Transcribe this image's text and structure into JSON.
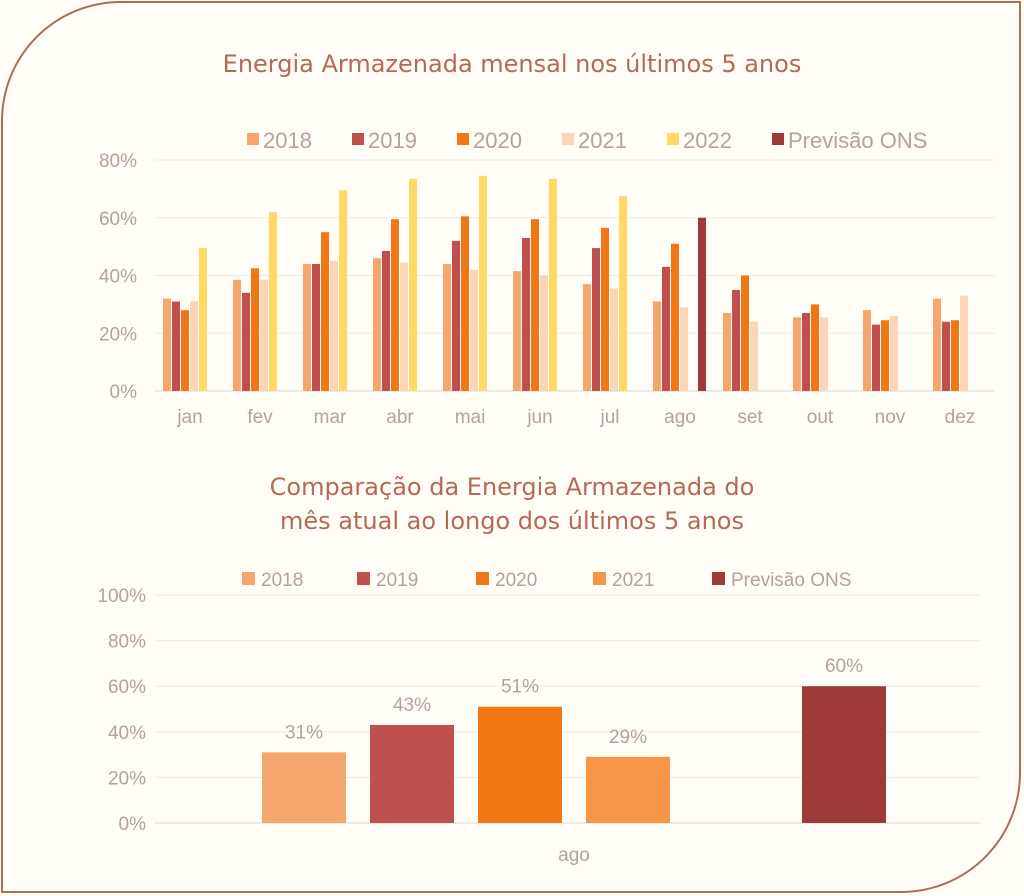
{
  "charts_meta": {
    "title1": "Energia Armazenada mensal nos últimos 5 anos",
    "title2_line1": "Comparação da Energia Armazenada do",
    "title2_line2": "mês atual ao longo dos últimos 5 anos"
  },
  "chart_data": [
    {
      "type": "bar",
      "title": "Energia Armazenada mensal nos últimos 5 anos",
      "categories": [
        "jan",
        "fev",
        "mar",
        "abr",
        "mai",
        "jun",
        "jul",
        "ago",
        "set",
        "out",
        "nov",
        "dez"
      ],
      "ylim": [
        0,
        80
      ],
      "yticks": [
        "0%",
        "20%",
        "40%",
        "60%",
        "80%"
      ],
      "grid": true,
      "legend_position": "top",
      "series": [
        {
          "name": "2018",
          "color": "#f5a66c",
          "values": [
            32,
            38.5,
            44,
            46,
            44,
            41.5,
            37,
            31,
            27,
            25.5,
            28,
            32
          ]
        },
        {
          "name": "2019",
          "color": "#c0504d",
          "values": [
            31,
            34,
            44,
            48.5,
            52,
            53,
            49.5,
            43,
            35,
            27,
            23,
            24
          ]
        },
        {
          "name": "2020",
          "color": "#f07714",
          "values": [
            28,
            42.5,
            55,
            59.5,
            60.5,
            59.5,
            56.5,
            51,
            40,
            30,
            24.5,
            24.5
          ]
        },
        {
          "name": "2021",
          "color": "#fbd5b5",
          "values": [
            31,
            38.5,
            45,
            44.5,
            42,
            40,
            35.5,
            29,
            24,
            25.5,
            26,
            33
          ]
        },
        {
          "name": "2022",
          "color": "#ffd966",
          "values": [
            49.5,
            62,
            69.5,
            73.5,
            74.5,
            73.5,
            67.5,
            null,
            null,
            null,
            null,
            null
          ]
        },
        {
          "name": "Previsão ONS",
          "color": "#9e3a38",
          "values": [
            null,
            null,
            null,
            null,
            null,
            null,
            null,
            60,
            null,
            null,
            null,
            null
          ]
        }
      ]
    },
    {
      "type": "bar",
      "title": "Comparação da Energia Armazenada do mês atual ao longo dos últimos 5 anos",
      "categories": [
        "ago"
      ],
      "ylim": [
        0,
        100
      ],
      "yticks": [
        "0%",
        "20%",
        "40%",
        "60%",
        "80%",
        "100%"
      ],
      "grid": true,
      "legend_position": "top",
      "series": [
        {
          "name": "2018",
          "color": "#f5a66c",
          "value": 31,
          "label": "31%"
        },
        {
          "name": "2019",
          "color": "#c0504d",
          "value": 43,
          "label": "43%"
        },
        {
          "name": "2020",
          "color": "#f07714",
          "value": 51,
          "label": "51%"
        },
        {
          "name": "2021",
          "color": "#f79646",
          "value": 29,
          "label": "29%"
        },
        {
          "name": "Previsão ONS",
          "color": "#9e3a38",
          "value": 60,
          "label": "60%"
        }
      ]
    }
  ]
}
